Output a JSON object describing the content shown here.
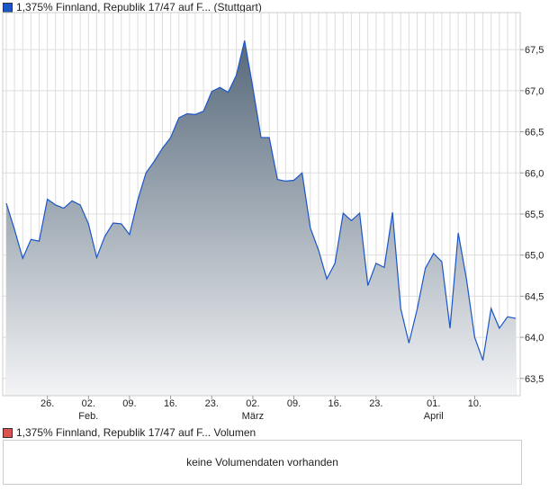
{
  "title": "1,375% Finnland, Republik 17/47 auf F... (Stuttgart)",
  "volume_legend": "1,375% Finnland, Republik 17/47 auf F... Volumen",
  "volume_empty": "keine Volumendaten vorhanden",
  "colors": {
    "line": "#1a56c8",
    "price_marker": "#1a56c8",
    "volume_marker": "#d9534f",
    "fill_top": "#56687a",
    "fill_bottom": "#f3f4f6"
  },
  "chart_data": {
    "type": "area",
    "title": "1,375% Finnland, Republik 17/47 auf F... (Stuttgart)",
    "xlabel": "",
    "ylabel": "",
    "ylim": [
      63.29,
      67.95
    ],
    "yticks": [
      63.5,
      64.0,
      64.5,
      65.0,
      65.5,
      66.0,
      66.5,
      67.0,
      67.5
    ],
    "ytick_labels": [
      "63,5",
      "64,0",
      "64,5",
      "65,0",
      "65,5",
      "66,0",
      "66,5",
      "67,0",
      "67,5"
    ],
    "xticks": [
      {
        "index": 5,
        "label": "26.",
        "sub": ""
      },
      {
        "index": 10,
        "label": "02.",
        "sub": "Feb."
      },
      {
        "index": 15,
        "label": "09.",
        "sub": ""
      },
      {
        "index": 20,
        "label": "16.",
        "sub": ""
      },
      {
        "index": 25,
        "label": "23.",
        "sub": ""
      },
      {
        "index": 30,
        "label": "02.",
        "sub": "März"
      },
      {
        "index": 35,
        "label": "09.",
        "sub": ""
      },
      {
        "index": 40,
        "label": "16.",
        "sub": ""
      },
      {
        "index": 45,
        "label": "23.",
        "sub": ""
      },
      {
        "index": 52,
        "label": "01.",
        "sub": "April"
      },
      {
        "index": 57,
        "label": "10.",
        "sub": ""
      }
    ],
    "grid": true,
    "values": [
      65.63,
      65.31,
      64.96,
      65.19,
      65.17,
      65.68,
      65.61,
      65.57,
      65.66,
      65.61,
      65.38,
      64.97,
      65.23,
      65.39,
      65.38,
      65.25,
      65.67,
      66.0,
      66.14,
      66.3,
      66.43,
      66.67,
      66.72,
      66.71,
      66.75,
      66.99,
      67.04,
      66.98,
      67.19,
      67.61,
      67.04,
      66.43,
      66.43,
      65.92,
      65.9,
      65.91,
      66.0,
      65.33,
      65.06,
      64.71,
      64.9,
      65.51,
      65.42,
      65.51,
      64.63,
      64.9,
      64.85,
      65.52,
      64.35,
      63.93,
      64.34,
      64.84,
      65.02,
      64.92,
      64.11,
      65.27,
      64.71,
      64.0,
      63.72,
      64.35,
      64.11,
      64.25,
      64.23
    ]
  }
}
